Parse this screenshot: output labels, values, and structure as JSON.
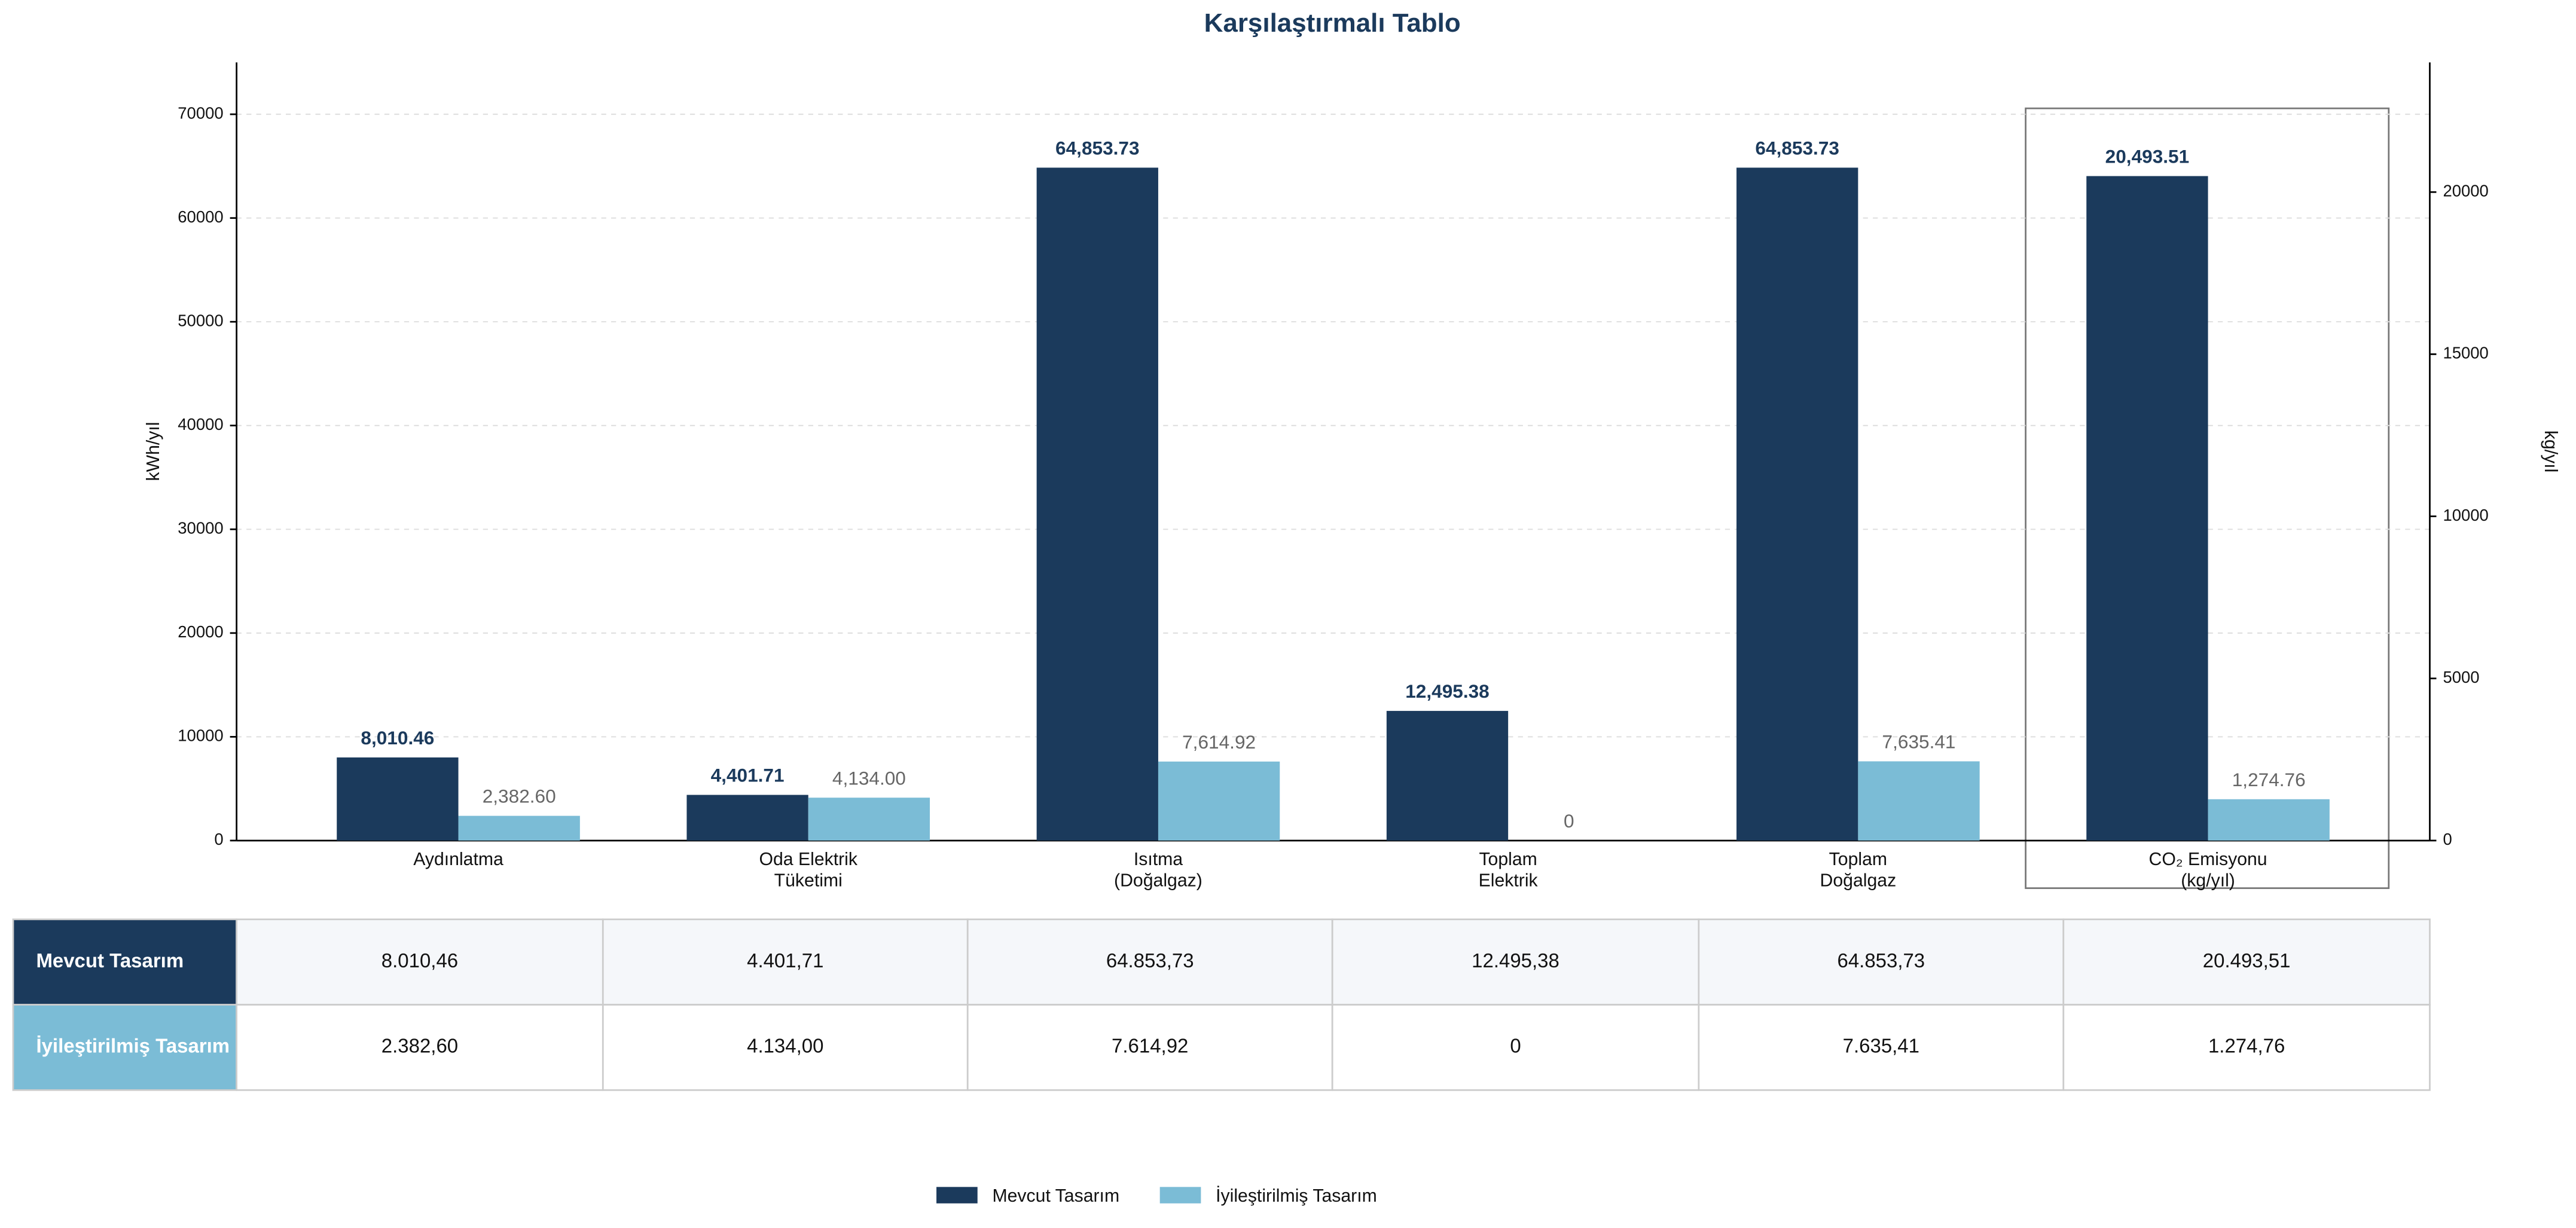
{
  "chart_data": {
    "type": "bar",
    "title": "Karşılaştırmalı Tablo",
    "y_label": "kWh/yıl",
    "y2_label": "kg/yıl",
    "categories": [
      [
        "Aydınlatma"
      ],
      [
        "Oda Elektrik",
        "Tüketimi"
      ],
      [
        "Isıtma",
        "(Doğalgaz)"
      ],
      [
        "Toplam",
        "Elektrik"
      ],
      [
        "Toplam",
        "Doğalgaz"
      ],
      [
        "CO₂ Emisyonu",
        "(kg/yıl)"
      ]
    ],
    "category_axes": [
      "y",
      "y",
      "y",
      "y",
      "y",
      "y2"
    ],
    "series": [
      {
        "name": "Mevcut Tasarım",
        "color": "#1b3a5c",
        "values": [
          8010.46,
          4401.71,
          64853.73,
          12495.38,
          64853.73,
          20493.51
        ],
        "value_labels": [
          "8,010.46",
          "4,401.71",
          "64,853.73",
          "12,495.38",
          "64,853.73",
          "20,493.51"
        ]
      },
      {
        "name": "İyileştirilmiş Tasarım",
        "color": "#7bbcd6",
        "values": [
          2382.6,
          4134.0,
          7614.92,
          0,
          7635.41,
          1274.76
        ],
        "value_labels": [
          "2,382.60",
          "4,134.00",
          "7,614.92",
          "0",
          "7,635.41",
          "1,274.76"
        ]
      }
    ],
    "ylim": [
      0,
      75000
    ],
    "yticks": [
      0,
      10000,
      20000,
      30000,
      40000,
      50000,
      60000,
      70000
    ],
    "y2lim": [
      0,
      24000
    ],
    "y2ticks": [
      0,
      5000,
      10000,
      15000,
      20000
    ],
    "grid": true,
    "legend": "bottom"
  },
  "table": {
    "rows": [
      [
        "8.010,46",
        "4.401,71",
        "64.853,73",
        "12.495,38",
        "64.853,73",
        "20.493,51"
      ],
      [
        "2.382,60",
        "4.134,00",
        "7.614,92",
        "0",
        "7.635,41",
        "1.274,76"
      ]
    ]
  }
}
